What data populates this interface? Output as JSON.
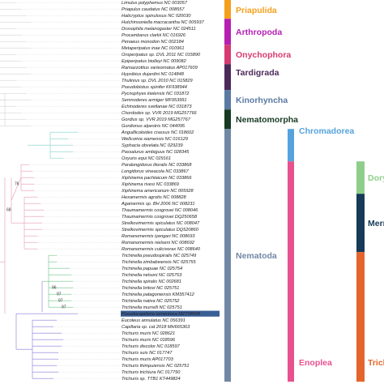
{
  "taxa": [
    "Limulus polyphemus NC 003057",
    "Priapulus caudatus NC 008557",
    "Halicryptus spinulosus NC 020030",
    "Hutchinsoniella macracantha NC 005937",
    "Drosophila melanogaster NC 024511",
    "Procambarus clarkii NC 016926",
    "Penaeus monodon NC 002184",
    "Metaperipatus inae NC 010961",
    "Oroperipatus sp. DVL 2011 NC 015890",
    "Epiperipatus biolleyi NC 009082",
    "Ramazzottius varieornatus AP017609",
    "Hypsibius dujardini NC 014848",
    "Thulinius sp. DVL 2010 NC 015829",
    "Pseudobiotus spinifer KF938944",
    "Pycnophyes kielensis NC 031872",
    "Semnoderes armiger MF953991",
    "Echinoderes svetlanae NC 031873",
    "Chordodes sp. VVR 2019 MG257766",
    "Gordius sp. VVR 2019 MG257767",
    "Gordionus alpestris NC 044095",
    "Anguillicoloides crassus NC 018602",
    "Wellcomia siamensis NC 016129",
    "Syphacia obvelata NC 029239",
    "Passalurus ambiguus NC 028345",
    "Oxyuris equi NC 029161",
    "Paralongidorus litoralis NC 033868",
    "Longidorus vineacola NC 033867",
    "Xiphinema pachtaicum NC 033866",
    "Xiphinema rivesi NC 033869",
    "Xiphinema americanum NC 005928",
    "Hexamermis agrotis NC 008828",
    "Agamermis sp. BH 2006 NC 008231",
    "Thaumamermis cosgrovei NC 008046",
    "Thaumamermis cosgrovei DQ250658",
    "Strelkovimermis spiculatus NC 008047",
    "Strelkovimermis spiculatus DQ520860",
    "Romanomermis iyengari NC 008693",
    "Romanomermis nielseni NC 008692",
    "Romanomermis culicivorax NC 008640",
    "Trichinella pseudospiralis NC 025749",
    "Trichinella zimbabwensis NC 025755",
    "Trichinella papuae NC 025754",
    "Trichinella nelsoni NC 025753",
    "Trichinella spiralis NC 002681",
    "Trichinella britovi NC 025751",
    "Trichinella patagoniensis KM357412",
    "Trichinella nativa NC 025752",
    "Trichinella murrelli NC 025751",
    "Pseudocapillaria tomentosa MZ708908",
    "Eucoleus annulatus NC 056391",
    "Capillaria sp. cat 2018 MH665363",
    "Trichuris muris NC 028621",
    "Trichuris muris NC 018596",
    "Trichuris discolor NC 018597",
    "Trichuris suis NC 017747",
    "Trichuris muris AP017703",
    "Trichuris thimpuiensis NC 025751",
    "Trichuris trichiura NC 017750",
    "Trichuris sp. TTB1 KT449824"
  ],
  "highlighted_taxon": "Pseudocapillaria tomentosa MZ708908",
  "support_values": [
    {
      "label": "76",
      "taxon_index": 28
    },
    {
      "label": "68",
      "taxon_index": 32
    },
    {
      "label": "96",
      "taxon_index": 44
    },
    {
      "label": "97",
      "taxon_index": 45
    },
    {
      "label": "97",
      "taxon_index": 46
    },
    {
      "label": "97",
      "taxon_index": 47
    }
  ],
  "bars_level1": [
    {
      "label": "Priapulida",
      "color": "#f5a01c",
      "from": 0,
      "to": 2
    },
    {
      "label": "Arthropoda",
      "color": "#b61fb2",
      "from": 3,
      "to": 6
    },
    {
      "label": "Onychophora",
      "color": "#d63a70",
      "from": 7,
      "to": 9
    },
    {
      "label": "Tardigrada",
      "color": "#4b2a5a",
      "from": 10,
      "to": 13
    },
    {
      "label": "",
      "color": "#ffffff",
      "from": 14,
      "to": 13
    },
    {
      "label": "Kinorhyncha",
      "color": "#5a7aa3",
      "from": 14,
      "to": 16
    },
    {
      "label": "Nematomorpha",
      "color": "#173a22",
      "from": 17,
      "to": 19
    },
    {
      "label": "Nematoda",
      "color": "#7188a4",
      "from": 20,
      "to": 58
    }
  ],
  "bars_level2": [
    {
      "label": "Chromadorea",
      "color": "#55a3dc",
      "from": 20,
      "to": 24
    },
    {
      "label": "Enoplea",
      "color": "#e9508e",
      "from": 25,
      "to": 58
    }
  ],
  "bars_level3": [
    {
      "label": "Dory",
      "color": "#8fce8a",
      "from": 25,
      "to": 29
    },
    {
      "label": "Merm",
      "color": "#163a57",
      "from": 30,
      "to": 38
    },
    {
      "label": "Trich",
      "color": "#e3652c",
      "from": 39,
      "to": 58
    }
  ]
}
